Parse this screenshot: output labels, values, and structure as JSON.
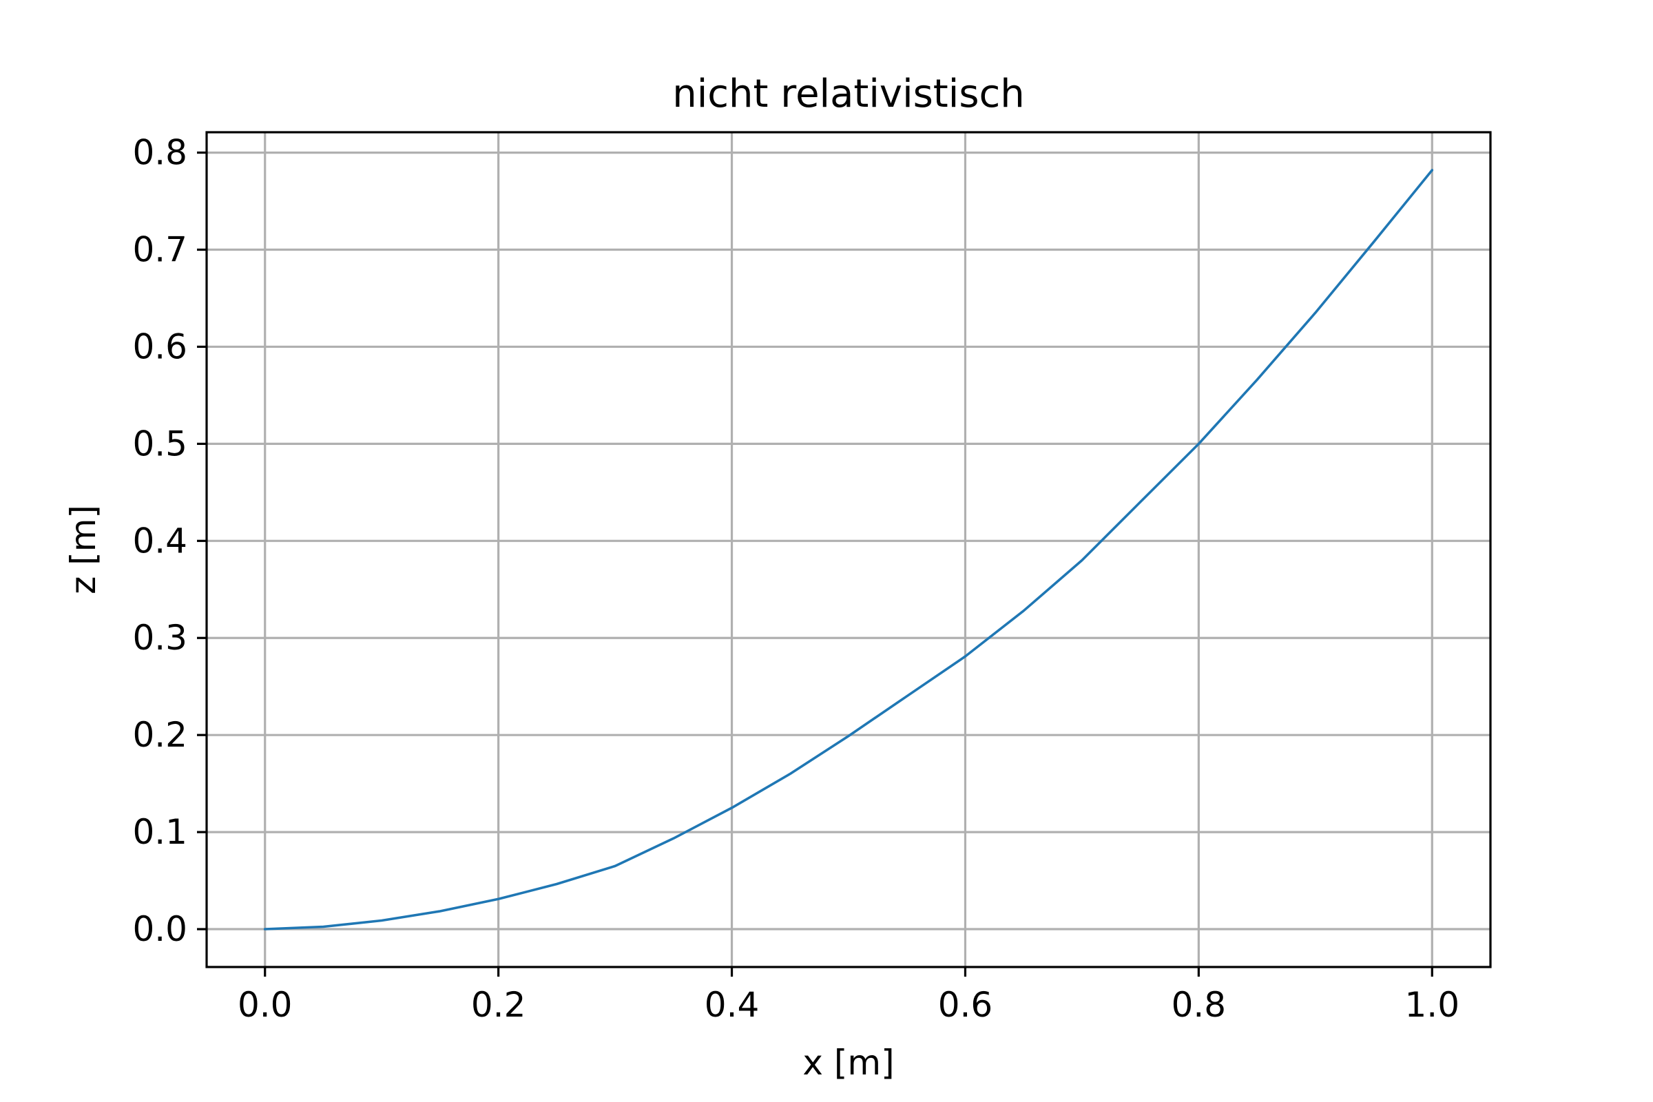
{
  "chart_data": {
    "type": "line",
    "title": "nicht relativistisch",
    "xlabel": "x [m]",
    "ylabel": "z [m]",
    "xlim": [
      -0.05,
      1.05
    ],
    "ylim": [
      -0.039,
      0.821
    ],
    "grid": true,
    "x_ticks": [
      {
        "value": 0.0,
        "label": "0.0"
      },
      {
        "value": 0.2,
        "label": "0.2"
      },
      {
        "value": 0.4,
        "label": "0.4"
      },
      {
        "value": 0.6,
        "label": "0.6"
      },
      {
        "value": 0.8,
        "label": "0.8"
      },
      {
        "value": 1.0,
        "label": "1.0"
      }
    ],
    "y_ticks": [
      {
        "value": 0.0,
        "label": "0.0"
      },
      {
        "value": 0.1,
        "label": "0.1"
      },
      {
        "value": 0.2,
        "label": "0.2"
      },
      {
        "value": 0.3,
        "label": "0.3"
      },
      {
        "value": 0.4,
        "label": "0.4"
      },
      {
        "value": 0.5,
        "label": "0.5"
      },
      {
        "value": 0.6,
        "label": "0.6"
      },
      {
        "value": 0.7,
        "label": "0.7"
      },
      {
        "value": 0.8,
        "label": "0.8"
      }
    ],
    "series": [
      {
        "name": "z(x)",
        "color": "#1f77b4",
        "x": [
          0.0,
          0.05,
          0.1,
          0.15,
          0.2,
          0.25,
          0.3,
          0.35,
          0.4,
          0.45,
          0.5,
          0.55,
          0.6,
          0.65,
          0.7,
          0.75,
          0.8,
          0.85,
          0.9,
          0.95,
          1.0
        ],
        "y": [
          0.0,
          0.0025,
          0.0089,
          0.0185,
          0.031,
          0.0465,
          0.065,
          0.0935,
          0.125,
          0.16,
          0.199,
          0.24,
          0.281,
          0.328,
          0.38,
          0.44,
          0.5,
          0.566,
          0.635,
          0.708,
          0.782
        ]
      }
    ]
  }
}
